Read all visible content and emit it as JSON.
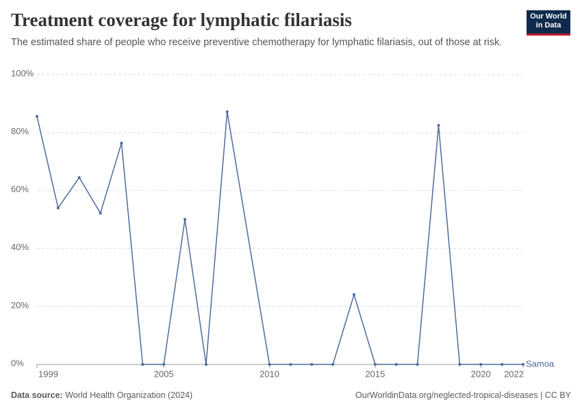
{
  "chart_data": {
    "type": "line",
    "title": "Treatment coverage for lymphatic filariasis",
    "subtitle": "The estimated share of people who receive preventive chemotherapy for lymphatic filariasis, out of those at risk.",
    "logo": [
      "Our World",
      "in Data"
    ],
    "source_label": "Data source:",
    "source": "World Health Organization (2024)",
    "url": "OurWorldinData.org/neglected-tropical-diseases | CC BY",
    "xlim": [
      1999,
      2022
    ],
    "xticks": [
      1999,
      2005,
      2010,
      2015,
      2020,
      2022
    ],
    "ylim": [
      0,
      100
    ],
    "yticks": [
      {
        "value": 0,
        "label": "0%"
      },
      {
        "value": 20,
        "label": "20%"
      },
      {
        "value": 40,
        "label": "40%"
      },
      {
        "value": 60,
        "label": "60%"
      },
      {
        "value": 80,
        "label": "80%"
      },
      {
        "value": 100,
        "label": "100%"
      }
    ],
    "grid": true,
    "series": [
      {
        "name": "Samoa",
        "color": "#4c6a9c",
        "x": [
          1999,
          2000,
          2001,
          2002,
          2003,
          2004,
          2005,
          2006,
          2007,
          2008,
          2010,
          2011,
          2012,
          2013,
          2014,
          2015,
          2016,
          2017,
          2018,
          2019,
          2020,
          2021,
          2022
        ],
        "values": [
          85.6,
          54,
          64.5,
          52.2,
          76.4,
          0,
          0,
          50.1,
          0,
          87.2,
          0,
          0,
          0,
          0,
          24.1,
          0,
          0,
          0,
          82.5,
          0,
          0,
          0,
          0
        ]
      }
    ]
  }
}
